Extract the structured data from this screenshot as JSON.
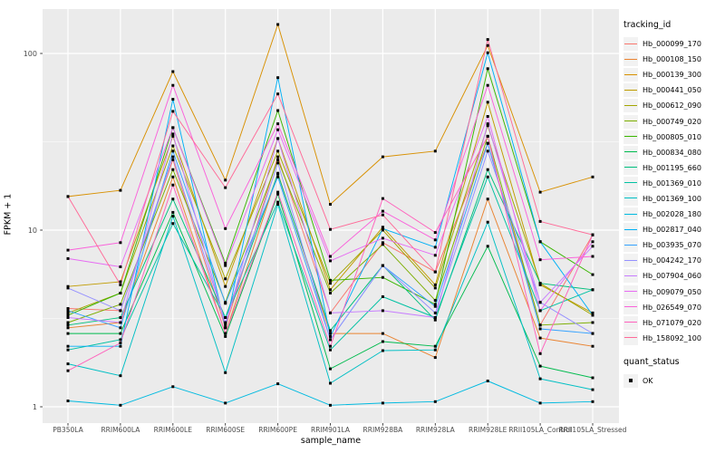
{
  "axis": {
    "x_title": "sample_name",
    "y_title": "FPKM + 1"
  },
  "legend": {
    "tracking_title": "tracking_id",
    "quant_title": "quant_status",
    "quant_ok_label": "OK"
  },
  "colors": {
    "panel_bg": "#EBEBEB",
    "grid": "#FFFFFF",
    "tick_text": "#4D4D4D",
    "point": "#000000"
  },
  "chart_data": {
    "type": "line",
    "title": "",
    "xlabel": "sample_name",
    "ylabel": "FPKM + 1",
    "yscale": "log10",
    "ylim": [
      0.8,
      180
    ],
    "y_ticks": [
      {
        "label": "100",
        "value": 100
      },
      {
        "label": "10",
        "value": 10
      },
      {
        "label": "1",
        "value": 1
      }
    ],
    "y_minor": [
      31.623,
      3.1623
    ],
    "grid": true,
    "legend_position": "right",
    "point_shape": "black-square",
    "categories": [
      "PB350LA",
      "RRIM600LA",
      "RRIM600LE",
      "RRIM600SE",
      "RRIM600PE",
      "RRIM901LA",
      "RRIM928BA",
      "RRIM928LA",
      "RRIM928LE",
      "RRII105LA_Control",
      "RRII105LA_Stressed"
    ],
    "series": [
      {
        "name": "Hb_000099_170",
        "color": "#F8766D",
        "values": [
          3.6,
          3.5,
          25,
          2.8,
          26,
          3.4,
          8.5,
          5.8,
          31,
          2.9,
          9.4
        ]
      },
      {
        "name": "Hb_000108_150",
        "color": "#EA8331",
        "values": [
          2.8,
          3.0,
          20,
          2.6,
          21,
          2.6,
          2.6,
          1.9,
          15,
          2.45,
          2.2
        ]
      },
      {
        "name": "Hb_000139_300",
        "color": "#D89000",
        "values": [
          15.5,
          16.8,
          79,
          19.2,
          146,
          14,
          26,
          28,
          111,
          16.4,
          20
        ]
      },
      {
        "name": "Hb_000441_050",
        "color": "#C09B00",
        "values": [
          4.8,
          5.1,
          34,
          4.8,
          33,
          4.6,
          10.4,
          4.9,
          53,
          4.9,
          3.4
        ]
      },
      {
        "name": "Hb_000612_090",
        "color": "#A3A500",
        "values": [
          3.4,
          4.4,
          30,
          5.3,
          28,
          5.0,
          10.0,
          4.7,
          39,
          5.0,
          3.3
        ]
      },
      {
        "name": "Hb_000749_020",
        "color": "#7CAE00",
        "values": [
          3.0,
          3.8,
          22,
          3.9,
          25,
          4.4,
          8.3,
          4.0,
          34,
          2.9,
          3.0
        ]
      },
      {
        "name": "Hb_000805_010",
        "color": "#39B600",
        "values": [
          3.3,
          4.4,
          38,
          6.5,
          47.5,
          5.2,
          5.4,
          3.8,
          82,
          8.6,
          5.6
        ]
      },
      {
        "name": "Hb_000834_080",
        "color": "#00BB4E",
        "values": [
          2.6,
          2.6,
          12.6,
          2.5,
          16,
          1.64,
          2.34,
          2.2,
          8.1,
          1.7,
          1.46
        ]
      },
      {
        "name": "Hb_001195_660",
        "color": "#00BF7D",
        "values": [
          2.9,
          3.2,
          15,
          3.2,
          20.8,
          2.7,
          6.3,
          3.1,
          22,
          5.0,
          4.6
        ]
      },
      {
        "name": "Hb_001369_010",
        "color": "#00C1A3",
        "values": [
          2.1,
          2.4,
          10.9,
          3.2,
          14.4,
          2.1,
          4.2,
          3.2,
          20,
          3.5,
          4.6
        ]
      },
      {
        "name": "Hb_001369_100",
        "color": "#00BFC4",
        "values": [
          1.75,
          1.5,
          12,
          1.56,
          14,
          1.36,
          2.08,
          2.1,
          11.1,
          1.44,
          1.25
        ]
      },
      {
        "name": "Hb_002028_180",
        "color": "#00BAE0",
        "values": [
          1.08,
          1.02,
          1.3,
          1.05,
          1.35,
          1.02,
          1.05,
          1.07,
          1.4,
          1.05,
          1.07
        ]
      },
      {
        "name": "Hb_002817_040",
        "color": "#00B0F6",
        "values": [
          2.2,
          2.2,
          55,
          2.8,
          73,
          2.5,
          10.2,
          8.0,
          101,
          8.6,
          3.3
        ]
      },
      {
        "name": "Hb_003935_070",
        "color": "#35A2FF",
        "values": [
          3.5,
          2.8,
          28,
          3.85,
          20,
          2.4,
          6.3,
          3.7,
          31,
          2.76,
          2.6
        ]
      },
      {
        "name": "Hb_004242_170",
        "color": "#9590FF",
        "values": [
          4.7,
          3.5,
          26,
          3.0,
          24,
          2.4,
          6.3,
          3.4,
          28,
          3.9,
          2.6
        ]
      },
      {
        "name": "Hb_007904_060",
        "color": "#C77CFF",
        "values": [
          3.2,
          3.0,
          35,
          2.9,
          33,
          3.4,
          3.5,
          3.2,
          40,
          3.9,
          8.1
        ]
      },
      {
        "name": "Hb_009079_050",
        "color": "#E76BF3",
        "values": [
          6.9,
          6.2,
          38,
          6.3,
          37,
          6.7,
          9.0,
          7.2,
          44,
          3.5,
          8.6
        ]
      },
      {
        "name": "Hb_026549_070",
        "color": "#FA62DB",
        "values": [
          7.7,
          8.5,
          66,
          10.2,
          40,
          7.1,
          12.8,
          8.8,
          66,
          6.8,
          7.1
        ]
      },
      {
        "name": "Hb_071079_020",
        "color": "#FF62BC",
        "values": [
          1.6,
          2.3,
          18,
          2.6,
          16.4,
          2.2,
          15.1,
          9.7,
          34,
          2.0,
          9.4
        ]
      },
      {
        "name": "Hb_158092_100",
        "color": "#FF6A98",
        "values": [
          15.5,
          4.9,
          47,
          17.4,
          59,
          10.1,
          12.2,
          5.8,
          120,
          11.2,
          9.4
        ]
      }
    ]
  }
}
